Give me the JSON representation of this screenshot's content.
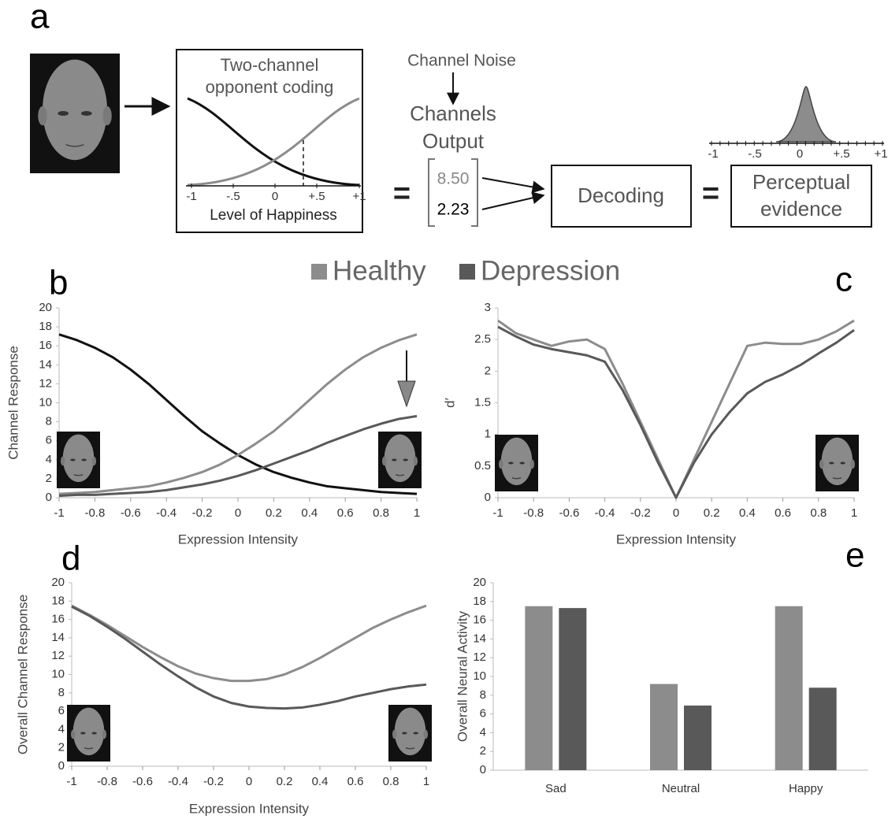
{
  "diagram": {
    "panel": "a",
    "box_title": [
      "Two-channel",
      "opponent coding"
    ],
    "axis_ticks": [
      "-1",
      "-.5",
      "0",
      "+.5",
      "+1"
    ],
    "axis_label": "Level of Happiness",
    "noise": "Channel Noise",
    "output": [
      "Channels",
      "Output"
    ],
    "equals": [
      "=",
      "="
    ],
    "outputs": [
      "8.50",
      "2.23"
    ],
    "decoding": "Decoding",
    "evidence": [
      "Perceptual",
      "evidence"
    ],
    "evidence_ticks": [
      "-1",
      "-.5",
      "0",
      "+.5",
      "+1"
    ]
  },
  "chart_data": [
    {
      "type": "line",
      "panel": "b",
      "x_label": "Expression Intensity",
      "y_label": "Channel Response",
      "x": [
        -1,
        -0.9,
        -0.8,
        -0.7,
        -0.6,
        -0.5,
        -0.4,
        -0.3,
        -0.2,
        -0.1,
        0,
        0.1,
        0.2,
        0.3,
        0.4,
        0.5,
        0.6,
        0.7,
        0.8,
        0.9,
        1
      ],
      "series": [
        {
          "color": "#111111",
          "values": [
            17.2,
            16.6,
            15.8,
            14.8,
            13.5,
            12.0,
            10.3,
            8.6,
            7.0,
            5.7,
            4.5,
            3.5,
            2.7,
            2.1,
            1.6,
            1.2,
            1.0,
            0.8,
            0.6,
            0.5,
            0.4
          ]
        },
        {
          "name": "Healthy",
          "color": "#8c8c8c",
          "values": [
            0.4,
            0.5,
            0.6,
            0.8,
            1.0,
            1.2,
            1.6,
            2.1,
            2.7,
            3.5,
            4.5,
            5.7,
            7.0,
            8.6,
            10.3,
            12.0,
            13.5,
            14.8,
            15.8,
            16.6,
            17.2
          ]
        },
        {
          "name": "Depression",
          "color": "#595959",
          "values": [
            0.2,
            0.3,
            0.3,
            0.4,
            0.5,
            0.6,
            0.8,
            1.1,
            1.4,
            1.8,
            2.3,
            2.9,
            3.6,
            4.3,
            5.0,
            5.8,
            6.5,
            7.2,
            7.8,
            8.3,
            8.6
          ]
        }
      ],
      "xlim": [
        -1,
        1
      ],
      "xticks": [
        -1,
        -0.8,
        -0.6,
        -0.4,
        -0.2,
        0,
        0.2,
        0.4,
        0.6,
        0.8,
        1
      ],
      "ylim": [
        0,
        20
      ],
      "yticks": [
        0,
        2,
        4,
        6,
        8,
        10,
        12,
        14,
        16,
        18,
        20
      ]
    },
    {
      "type": "line",
      "panel": "c",
      "x_label": "Expression Intensity",
      "y_label": "d′",
      "x": [
        -1,
        -0.9,
        -0.8,
        -0.7,
        -0.6,
        -0.5,
        -0.4,
        -0.3,
        -0.2,
        -0.1,
        0,
        0.1,
        0.2,
        0.3,
        0.4,
        0.5,
        0.6,
        0.7,
        0.8,
        0.9,
        1
      ],
      "series": [
        {
          "name": "Healthy",
          "color": "#8c8c8c",
          "values": [
            2.8,
            2.6,
            2.5,
            2.4,
            2.47,
            2.5,
            2.35,
            1.8,
            1.2,
            0.6,
            0,
            0.6,
            1.2,
            1.8,
            2.4,
            2.45,
            2.43,
            2.43,
            2.5,
            2.63,
            2.8
          ]
        },
        {
          "name": "Depression",
          "color": "#595959",
          "values": [
            2.7,
            2.55,
            2.42,
            2.35,
            2.3,
            2.25,
            2.15,
            1.7,
            1.15,
            0.55,
            0,
            0.55,
            1.0,
            1.35,
            1.65,
            1.83,
            1.95,
            2.1,
            2.28,
            2.45,
            2.65
          ]
        }
      ],
      "xlim": [
        -1,
        1
      ],
      "xticks": [
        -1,
        -0.8,
        -0.6,
        -0.4,
        -0.2,
        0,
        0.2,
        0.4,
        0.6,
        0.8,
        1
      ],
      "ylim": [
        0,
        3
      ],
      "yticks": [
        0,
        0.5,
        1,
        1.5,
        2,
        2.5,
        3
      ]
    },
    {
      "type": "line",
      "panel": "d",
      "x_label": "Expression Intensity",
      "y_label": "Overall Channel Response",
      "x": [
        -1,
        -0.9,
        -0.8,
        -0.7,
        -0.6,
        -0.5,
        -0.4,
        -0.3,
        -0.2,
        -0.1,
        0,
        0.1,
        0.2,
        0.3,
        0.4,
        0.5,
        0.6,
        0.7,
        0.8,
        0.9,
        1
      ],
      "series": [
        {
          "name": "Healthy",
          "color": "#8c8c8c",
          "values": [
            17.5,
            16.5,
            15.4,
            14.2,
            13.0,
            11.9,
            10.9,
            10.1,
            9.6,
            9.3,
            9.3,
            9.5,
            10.0,
            10.8,
            11.8,
            12.9,
            14.0,
            15.1,
            16.0,
            16.8,
            17.5
          ]
        },
        {
          "name": "Depression",
          "color": "#595959",
          "values": [
            17.4,
            16.4,
            15.2,
            13.9,
            12.5,
            11.1,
            9.8,
            8.6,
            7.6,
            6.9,
            6.5,
            6.35,
            6.3,
            6.4,
            6.7,
            7.1,
            7.6,
            8.0,
            8.4,
            8.7,
            8.9
          ]
        }
      ],
      "xlim": [
        -1,
        1
      ],
      "xticks": [
        -1,
        -0.8,
        -0.6,
        -0.4,
        -0.2,
        0,
        0.2,
        0.4,
        0.6,
        0.8,
        1
      ],
      "ylim": [
        0,
        20
      ],
      "yticks": [
        0,
        2,
        4,
        6,
        8,
        10,
        12,
        14,
        16,
        18,
        20
      ]
    },
    {
      "type": "bar",
      "panel": "e",
      "y_label": "Overall Neural Activity",
      "categories": [
        "Sad",
        "Neutral",
        "Happy"
      ],
      "series": [
        {
          "name": "Healthy",
          "color": "#8c8c8c",
          "values": [
            17.5,
            9.2,
            17.5
          ]
        },
        {
          "name": "Depression",
          "color": "#595959",
          "values": [
            17.3,
            6.9,
            8.8
          ]
        }
      ],
      "ylim": [
        0,
        20
      ],
      "yticks": [
        0,
        2,
        4,
        6,
        8,
        10,
        12,
        14,
        16,
        18,
        20
      ]
    }
  ]
}
